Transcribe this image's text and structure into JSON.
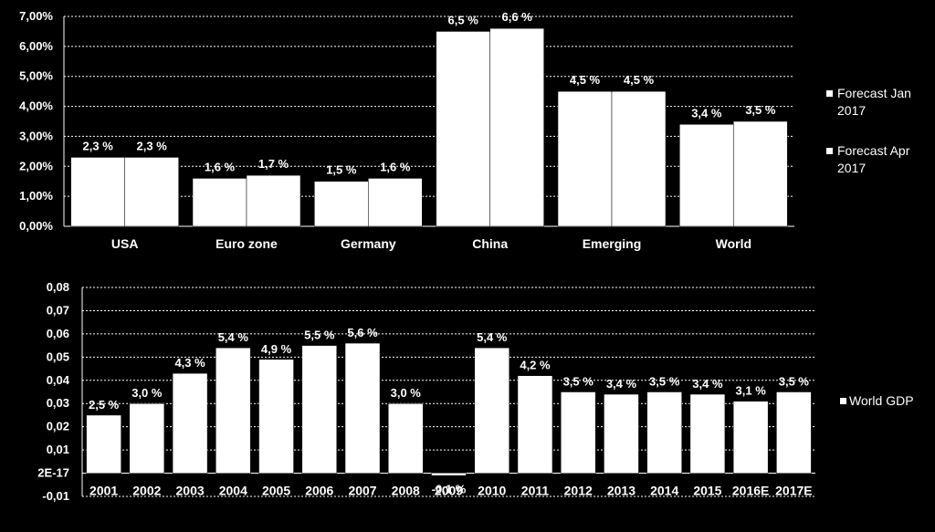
{
  "chart_data": [
    {
      "type": "bar",
      "categories": [
        "USA",
        "Euro zone",
        "Germany",
        "China",
        "Emerging",
        "World"
      ],
      "series": [
        {
          "name": "Forecast Jan 2017",
          "values": [
            2.3,
            1.6,
            1.5,
            6.5,
            4.5,
            3.4
          ],
          "labels": [
            "2,3 %",
            "1,6 %",
            "1,5 %",
            "6,5 %",
            "4,5 %",
            "3,4 %"
          ]
        },
        {
          "name": "Forecast Apr 2017",
          "values": [
            2.3,
            1.7,
            1.6,
            6.6,
            4.5,
            3.5
          ],
          "labels": [
            "2,3 %",
            "1,7 %",
            "1,6 %",
            "6,6 %",
            "4,5 %",
            "3,5 %"
          ]
        }
      ],
      "legend_lines": [
        [
          "Forecast Jan",
          "2017"
        ],
        [
          "Forecast Apr",
          "2017"
        ]
      ],
      "yticks": [
        "0,00%",
        "1,00%",
        "2,00%",
        "3,00%",
        "4,00%",
        "5,00%",
        "6,00%",
        "7,00%"
      ],
      "ylim": [
        0,
        7
      ],
      "grid": true,
      "legend_position": "right"
    },
    {
      "type": "bar",
      "categories": [
        "2001",
        "2002",
        "2003",
        "2004",
        "2005",
        "2006",
        "2007",
        "2008",
        "2009",
        "2010",
        "2011",
        "2012",
        "2013",
        "2014",
        "2015",
        "2016E",
        "2017E"
      ],
      "series": [
        {
          "name": "World GDP",
          "values": [
            0.025,
            0.03,
            0.043,
            0.054,
            0.049,
            0.055,
            0.056,
            0.03,
            -0.001,
            0.054,
            0.042,
            0.035,
            0.034,
            0.035,
            0.034,
            0.031,
            0.035
          ],
          "labels": [
            "2,5 %",
            "3,0 %",
            "4,3 %",
            "5,4 %",
            "4,9 %",
            "5,5 %",
            "5,6 %",
            "3,0 %",
            "-0,1 %",
            "5,4 %",
            "4,2 %",
            "3,5 %",
            "3,4 %",
            "3,5 %",
            "3,4 %",
            "3,1 %",
            "3,5 %"
          ]
        }
      ],
      "yticks": [
        "-0,01",
        "2E-17",
        "0,01",
        "0,02",
        "0,03",
        "0,04",
        "0,05",
        "0,06",
        "0,07",
        "0,08"
      ],
      "ylim": [
        -0.01,
        0.08
      ],
      "grid": true,
      "legend_position": "right"
    }
  ]
}
